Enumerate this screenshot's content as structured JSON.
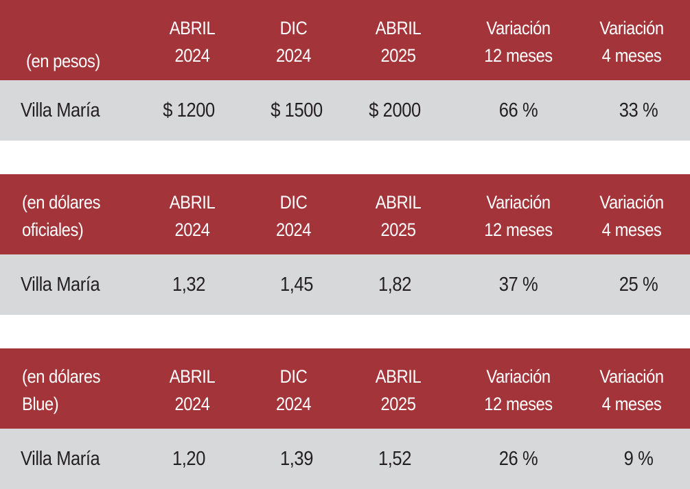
{
  "tables": [
    {
      "header": {
        "label": "(en pesos)",
        "columns": [
          "ABRIL\n2024",
          "DIC\n2024",
          "ABRIL\n2025",
          "Variación\n12 meses",
          "Variación\n4 meses"
        ]
      },
      "row": {
        "label": "Villa María",
        "values": [
          "$ 1200",
          "$ 1500",
          "$ 2000",
          "66 %",
          "33 %"
        ]
      }
    },
    {
      "header": {
        "label": "(en dólares\noficiales)",
        "columns": [
          "ABRIL\n2024",
          "DIC\n2024",
          "ABRIL\n2025",
          "Variación\n12 meses",
          "Variación\n4 meses"
        ]
      },
      "row": {
        "label": "Villa María",
        "values": [
          "1,32",
          "1,45",
          "1,82",
          "37 %",
          "25 %"
        ]
      }
    },
    {
      "header": {
        "label": "(en dólares\nBlue)",
        "columns": [
          "ABRIL\n2024",
          "DIC\n2024",
          "ABRIL\n2025",
          "Variación\n12 meses",
          "Variación\n4 meses"
        ]
      },
      "row": {
        "label": "Villa María",
        "values": [
          "1,20",
          "1,39",
          "1,52",
          "26 %",
          "9 %"
        ]
      }
    }
  ],
  "colors": {
    "header_bg": "#a3353a",
    "header_text": "#ffffff",
    "row_bg": "#d7d8da",
    "row_text": "#231f20",
    "page_bg": "#ffffff"
  }
}
